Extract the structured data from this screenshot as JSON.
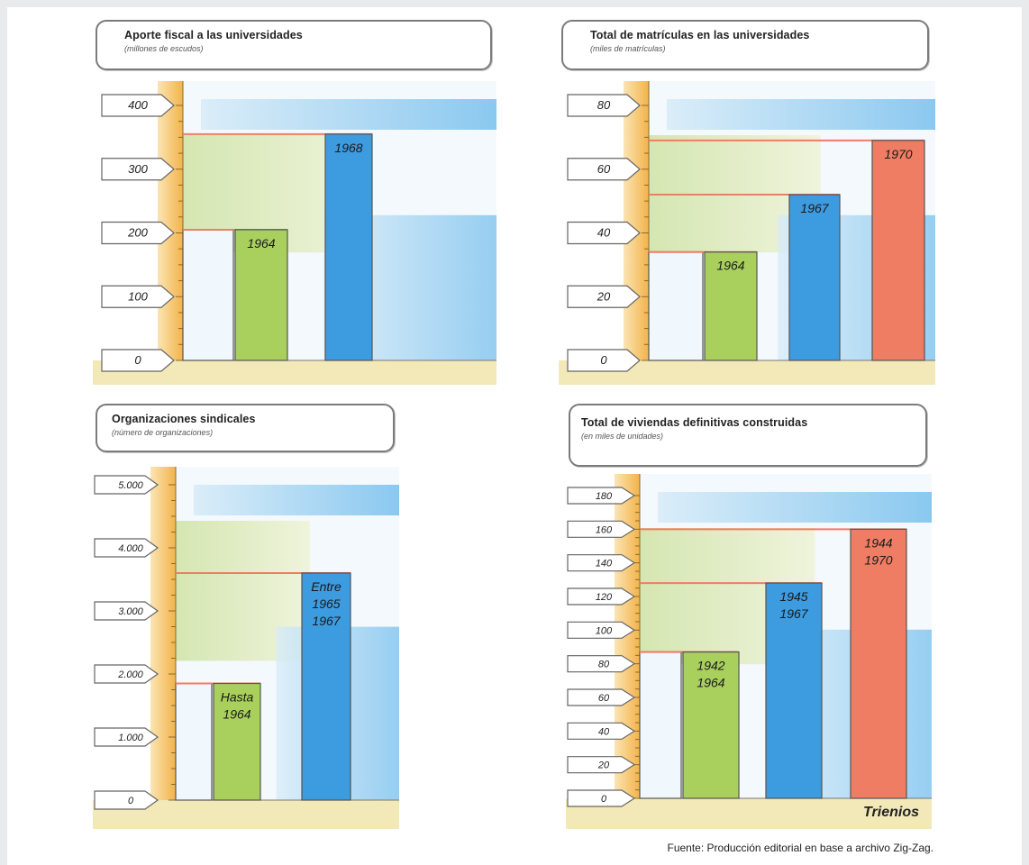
{
  "source": "Fuente: Producción editorial en base a archivo Zig-Zag.",
  "colors": {
    "axis": "#f3b34a",
    "green": "#a9cf5c",
    "blue": "#3d9be0",
    "red": "#ef7d64",
    "white_bar": "#f1f8fd",
    "refline": "#ef7d64",
    "ground": "#f3e9b8"
  },
  "chart_data": [
    {
      "type": "bar",
      "title": "Aporte fiscal a las universidades",
      "subtitle": "(millones de escudos)",
      "ylim": [
        0,
        400
      ],
      "yticks": [
        "400",
        "300",
        "200",
        "100",
        "0"
      ],
      "bars": [
        {
          "label": "",
          "value": 205,
          "color": "white"
        },
        {
          "label": "1964",
          "value": 205,
          "color": "green"
        },
        {
          "label": "1968",
          "value": 355,
          "color": "blue"
        }
      ]
    },
    {
      "type": "bar",
      "title": "Total de matrículas en las universidades",
      "subtitle": "(miles de matrículas)",
      "ylim": [
        0,
        80
      ],
      "yticks": [
        "80",
        "60",
        "40",
        "20",
        "0"
      ],
      "bars": [
        {
          "label": "",
          "value": 34,
          "color": "white"
        },
        {
          "label": "1964",
          "value": 34,
          "color": "green"
        },
        {
          "label": "1967",
          "value": 52,
          "color": "blue"
        },
        {
          "label": "1970",
          "value": 69,
          "color": "red"
        }
      ]
    },
    {
      "type": "bar",
      "title": "Organizaciones sindicales",
      "subtitle": "(número de organizaciones)",
      "ylim": [
        0,
        5000
      ],
      "yticks": [
        "5.000",
        "4.000",
        "3.000",
        "2.000",
        "1.000",
        "0"
      ],
      "bars": [
        {
          "label": "",
          "value": 1850,
          "color": "white"
        },
        {
          "label": "Hasta\n1964",
          "value": 1850,
          "color": "green"
        },
        {
          "label": "Entre\n1965\n1967",
          "value": 3600,
          "color": "blue"
        }
      ]
    },
    {
      "type": "bar",
      "title": "Total de viviendas definitivas construidas",
      "subtitle": "(en miles de unidades)",
      "ylim": [
        0,
        180
      ],
      "yticks": [
        "180",
        "160",
        "140",
        "120",
        "100",
        "80",
        "60",
        "40",
        "20",
        "0"
      ],
      "xlabel": "Trienios",
      "bars": [
        {
          "label": "",
          "value": 87,
          "color": "white"
        },
        {
          "label": "1942\n1964",
          "value": 87,
          "color": "green"
        },
        {
          "label": "1945\n1967",
          "value": 128,
          "color": "blue"
        },
        {
          "label": "1944\n1970",
          "value": 160,
          "color": "red"
        }
      ]
    }
  ]
}
